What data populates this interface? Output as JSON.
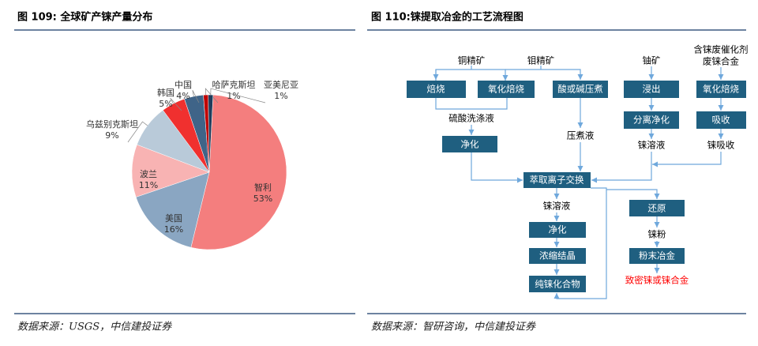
{
  "left": {
    "title": "图 109:  全球矿产铼产量分布",
    "source": "数据来源：USGS，中信建投证券"
  },
  "chart_data": {
    "type": "pie",
    "categories": [
      "智利",
      "美国",
      "波兰",
      "乌兹别克斯坦",
      "韩国",
      "中国",
      "哈萨克斯坦",
      "亚美尼亚"
    ],
    "values": [
      53,
      16,
      11,
      9,
      5,
      4,
      1,
      1
    ],
    "value_labels": [
      "53%",
      "16%",
      "11%",
      "9%",
      "5%",
      "4%",
      "1%",
      "1%"
    ],
    "colors": [
      "#f47e7e",
      "#8aa6c2",
      "#f8b3b3",
      "#b9cad9",
      "#f0302f",
      "#3f6488",
      "#c00000",
      "#1f3d5c"
    ]
  },
  "right": {
    "title": "图 110:铼提取冶金的工艺流程图",
    "source": "数据来源：智研咨询，中信建投证券"
  },
  "flow": {
    "inputs": [
      "铜精矿",
      "钼精矿",
      "铀矿",
      "含铼废催化剂",
      "废铼合金"
    ],
    "boxes": [
      "焙烧",
      "氧化焙烧",
      "酸或碱压煮",
      "浸出",
      "氧化焙烧",
      "分离净化",
      "吸收",
      "净化",
      "萃取离子交换",
      "还原",
      "净化",
      "浓缩结晶",
      "粉末冶金",
      "纯铼化合物"
    ],
    "labels": [
      "硫酸洗涤液",
      "压煮液",
      "铼溶液",
      "铼吸收",
      "铼溶液",
      "铼粉"
    ],
    "product": "致密铼或铼合金"
  }
}
